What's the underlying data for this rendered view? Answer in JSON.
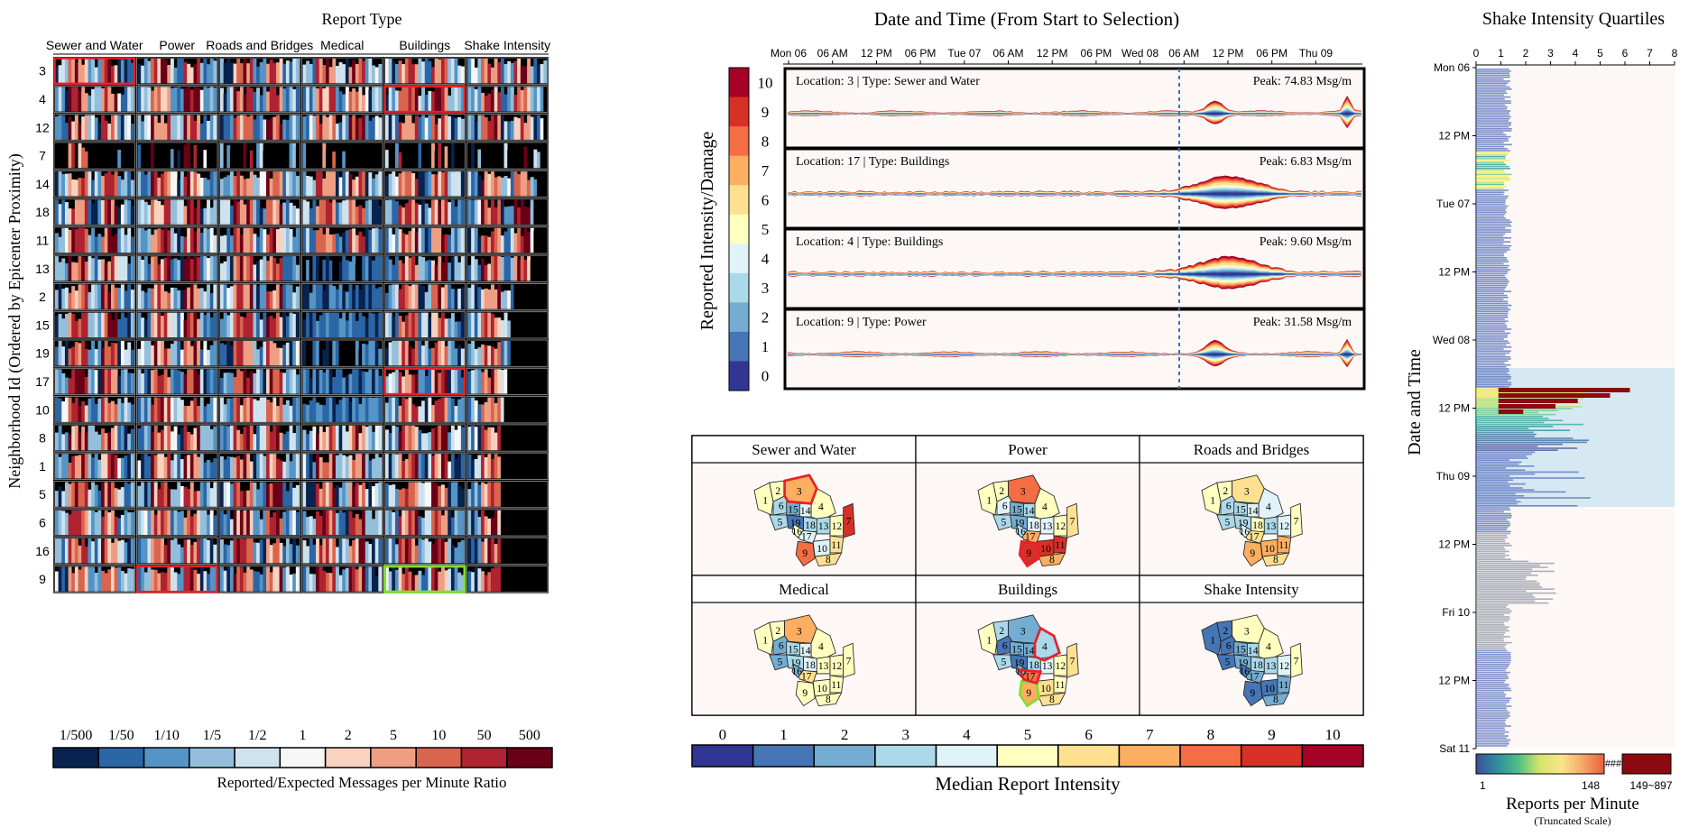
{
  "titles": {
    "report_type": "Report Type",
    "date_time": "Date and Time (From Start to Selection)",
    "shake": "Shake Intensity Quartiles"
  },
  "heatmap": {
    "ylabel": "Neighborhood Id (Ordered by Epicenter Proximity)",
    "columns": [
      "Sewer and Water",
      "Power",
      "Roads and Bridges",
      "Medical",
      "Buildings",
      "Shake Intensity"
    ],
    "rows": [
      "3",
      "4",
      "12",
      "7",
      "14",
      "18",
      "11",
      "13",
      "2",
      "15",
      "19",
      "17",
      "10",
      "8",
      "1",
      "5",
      "6",
      "16",
      "9"
    ],
    "highlights_red": [
      [
        0,
        0
      ],
      [
        1,
        4
      ],
      [
        11,
        4
      ],
      [
        18,
        1
      ]
    ],
    "highlights_green": [
      [
        18,
        4
      ]
    ],
    "legend_ticks": [
      "1/500",
      "1/50",
      "1/10",
      "1/5",
      "1/2",
      "1",
      "2",
      "5",
      "10",
      "50",
      "500"
    ],
    "legend_colors": [
      "#08234f",
      "#2b66a6",
      "#5594c6",
      "#93bfdc",
      "#cfe3ef",
      "#f7f7f7",
      "#f9d2c0",
      "#ee9e83",
      "#d9654f",
      "#b02330",
      "#6a0017"
    ],
    "legend_title": "Reported/Expected Messages per Minute Ratio"
  },
  "timeline": {
    "ylabel": "Reported Intensity/Damage",
    "time_ticks": [
      "Mon 06",
      "06 AM",
      "12 PM",
      "06 PM",
      "Tue 07",
      "06 AM",
      "12 PM",
      "06 PM",
      "Wed 08",
      "06 AM",
      "12 PM",
      "06 PM",
      "Thu 09"
    ],
    "scale_ticks": [
      "10",
      "9",
      "8",
      "7",
      "6",
      "5",
      "4",
      "3",
      "2",
      "1",
      "0"
    ],
    "scale_colors": [
      "#a50026",
      "#d73027",
      "#f46d43",
      "#fdae61",
      "#fee090",
      "#ffffbf",
      "#e0f3f8",
      "#abd9e9",
      "#74add1",
      "#4575b4",
      "#313695"
    ],
    "panels": [
      {
        "label": "Location: 3 | Type: Sewer and Water",
        "peak": "Peak: 74.83 Msg/m"
      },
      {
        "label": "Location: 17 | Type: Buildings",
        "peak": "Peak: 6.83 Msg/m"
      },
      {
        "label": "Location: 4 | Type: Buildings",
        "peak": "Peak: 9.60 Msg/m"
      },
      {
        "label": "Location: 9 | Type: Power",
        "peak": "Peak: 31.58 Msg/m"
      }
    ]
  },
  "maps": {
    "titles": [
      "Sewer and Water",
      "Power",
      "Roads and Bridges",
      "Medical",
      "Buildings",
      "Shake Intensity"
    ],
    "region_labels": [
      "1",
      "2",
      "3",
      "4",
      "6",
      "15",
      "14",
      "5",
      "19",
      "18",
      "13",
      "12",
      "7",
      "17",
      "10",
      "11",
      "9",
      "8",
      "16"
    ],
    "legend_ticks": [
      "0",
      "1",
      "2",
      "3",
      "4",
      "5",
      "6",
      "7",
      "8",
      "9",
      "10"
    ],
    "legend_title": "Median Report Intensity"
  },
  "shake": {
    "ylabel": "Date and Time",
    "x_ticks": [
      "0",
      "1",
      "2",
      "3",
      "4",
      "5",
      "6",
      "7",
      "8"
    ],
    "y_ticks": [
      "Mon 06",
      "12 PM",
      "Tue 07",
      "12 PM",
      "Wed 08",
      "12 PM",
      "Thu 09",
      "12 PM",
      "Fri 10",
      "12 PM",
      "Sat 11"
    ],
    "legend_left": "1",
    "legend_mid": "148",
    "legend_overflow": "###",
    "legend_right": "149~897",
    "legend_title": "Reports per Minute",
    "legend_sub": "(Truncated Scale)"
  },
  "chart_data": [
    {
      "type": "heatmap",
      "title": "Report Type",
      "ylabel": "Neighborhood Id (Ordered by Epicenter Proximity)",
      "xlabel": "",
      "categories": [
        "Sewer and Water",
        "Power",
        "Roads and Bridges",
        "Medical",
        "Buildings",
        "Shake Intensity"
      ],
      "rows": [
        "3",
        "4",
        "12",
        "7",
        "14",
        "18",
        "11",
        "13",
        "2",
        "15",
        "19",
        "17",
        "10",
        "8",
        "1",
        "5",
        "6",
        "16",
        "9"
      ]
    },
    {
      "type": "area",
      "title": "Date and Time (From Start to Selection)",
      "ylabel": "Reported Intensity/Damage",
      "series": [
        {
          "name": "Location: 3 | Type: Sewer and Water",
          "peak": 74.83
        },
        {
          "name": "Location: 17 | Type: Buildings",
          "peak": 6.83
        },
        {
          "name": "Location: 4 | Type: Buildings",
          "peak": 9.6
        },
        {
          "name": "Location: 9 | Type: Power",
          "peak": 31.58
        }
      ]
    },
    {
      "type": "bar",
      "title": "Shake Intensity Quartiles",
      "ylabel": "Date and Time",
      "xlim": [
        0,
        8
      ]
    }
  ]
}
